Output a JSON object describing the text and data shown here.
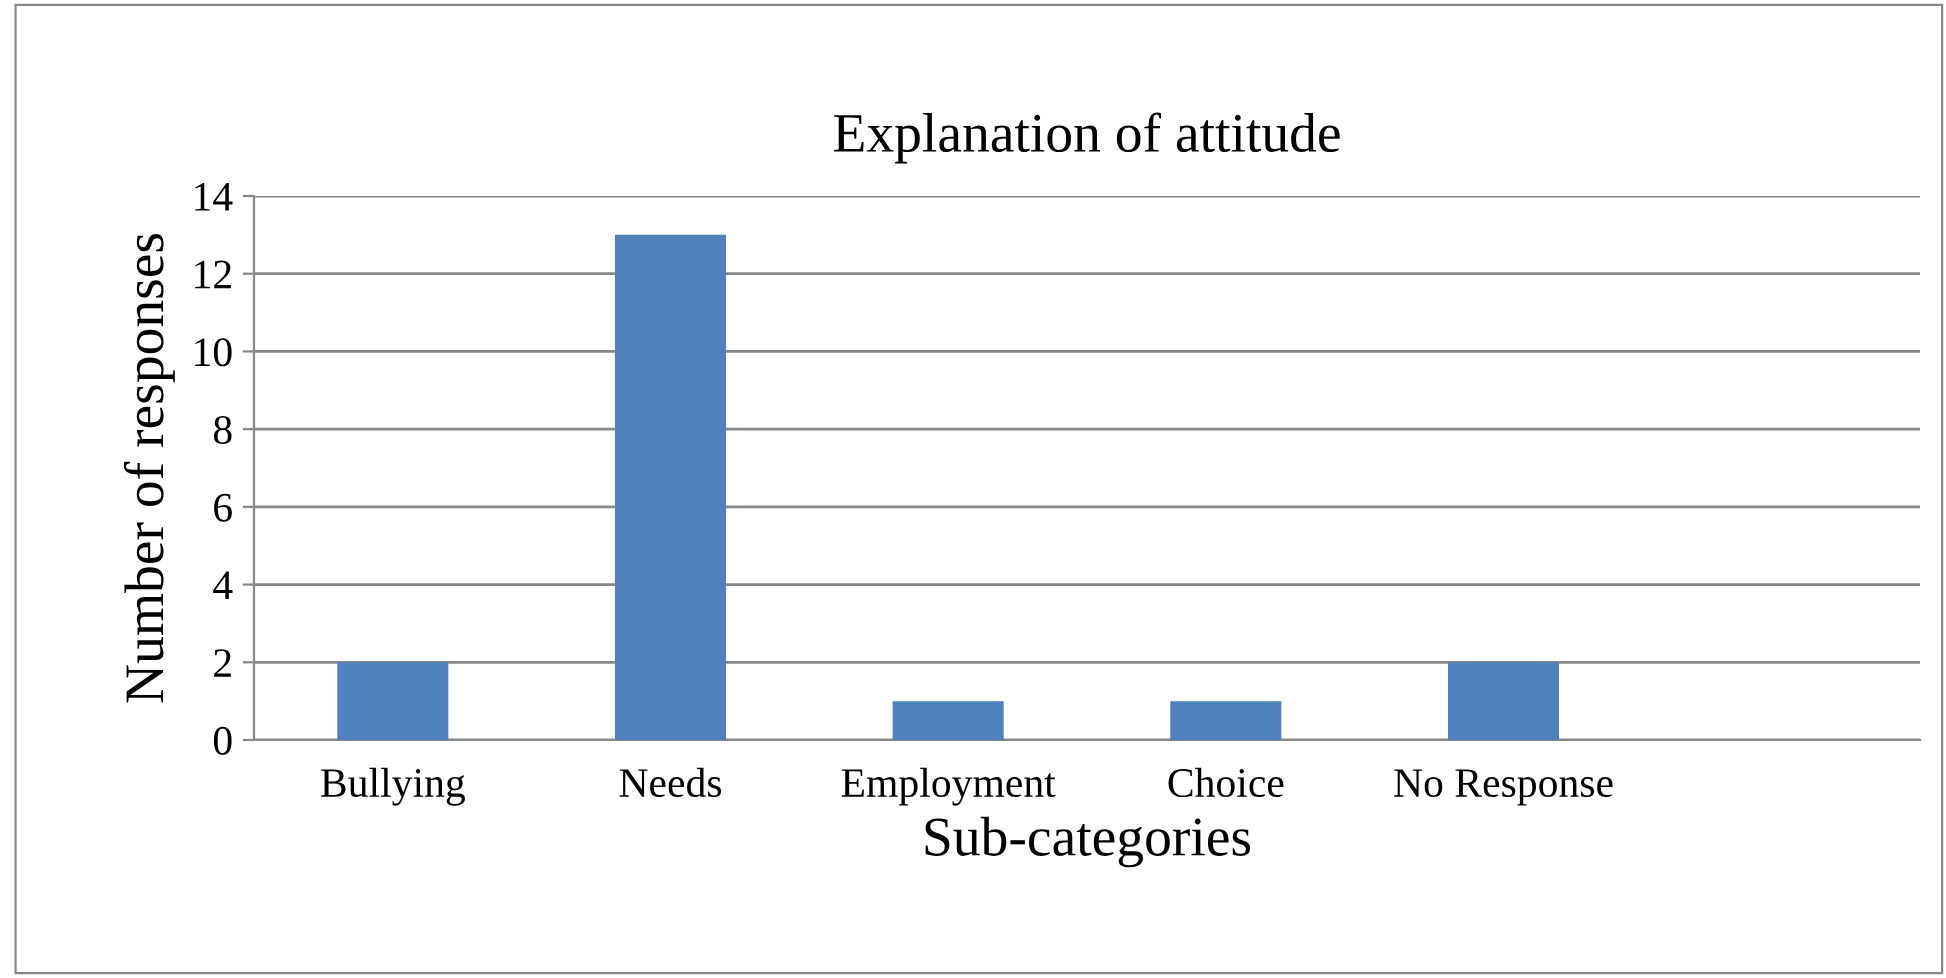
{
  "chart_data": {
    "type": "bar",
    "title": "Explanation of attitude",
    "xlabel": "Sub-categories",
    "ylabel": "Number of responses",
    "categories": [
      "Bullying",
      "Needs",
      "Employment",
      "Choice",
      "No Response",
      null
    ],
    "values": [
      2,
      13,
      1,
      1,
      2,
      null
    ],
    "color": "#4f81bd",
    "ylim": [
      0,
      14
    ],
    "yticks": [
      0,
      2,
      4,
      6,
      8,
      10,
      12,
      14
    ],
    "grid": "y",
    "legend": false
  }
}
